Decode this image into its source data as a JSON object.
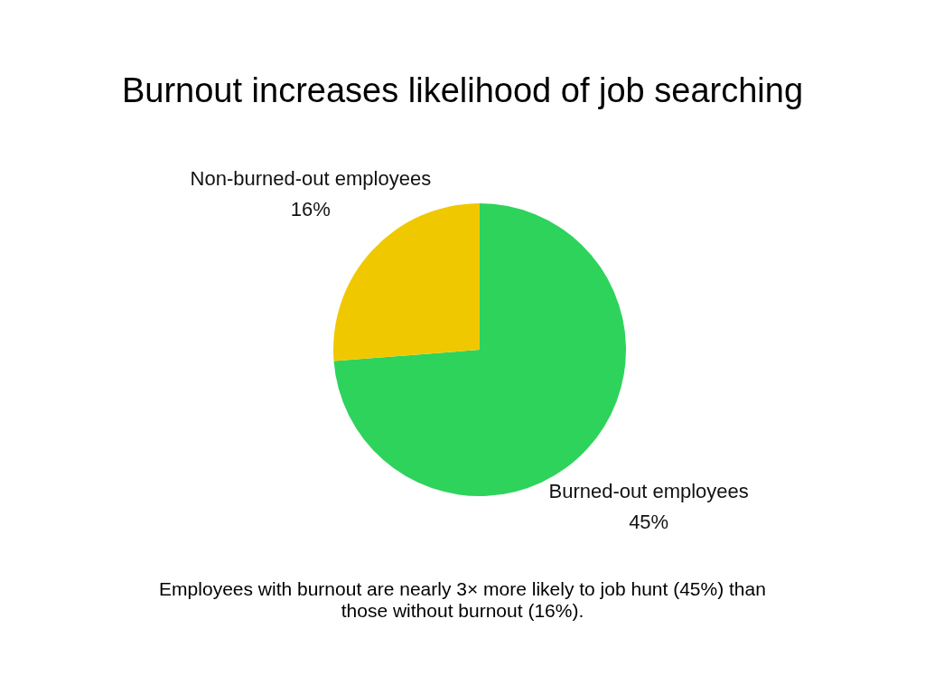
{
  "chart_data": {
    "type": "pie",
    "title": "Burnout increases likelihood of job searching",
    "categories": [
      "Burned-out employees",
      "Non-burned-out employees"
    ],
    "values": [
      45,
      16
    ],
    "colors": [
      "#2ed35c",
      "#f0c800"
    ],
    "value_labels": [
      "45%",
      "16%"
    ],
    "annotations": [
      "Employees with burnout are nearly 3× more likely to job hunt (45%) than\nthose without burnout (16%)."
    ]
  }
}
